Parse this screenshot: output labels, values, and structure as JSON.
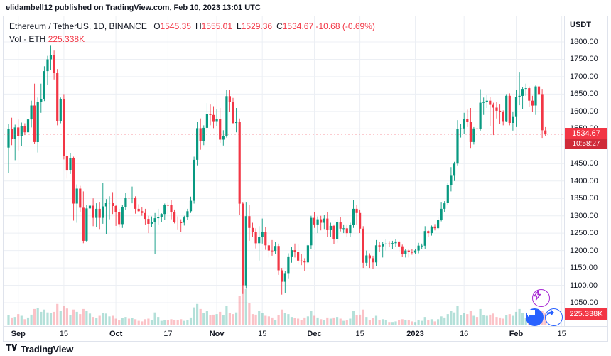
{
  "header": {
    "publish_info": "elidambell12 published on TradingView.com, Feb 10, 2023 13:01 UTC"
  },
  "legend": {
    "title": "Ethereum / TetherUS, 1D, BINANCE",
    "ohlc": [
      {
        "label": "O",
        "value": "1545.35"
      },
      {
        "label": "H",
        "value": "1555.01"
      },
      {
        "label": "L",
        "value": "1529.36"
      },
      {
        "label": "C",
        "value": "1534.67"
      }
    ],
    "change": "-10.68 (-0.69%)",
    "vol": {
      "label": "Vol · ETH",
      "value": "225.338K"
    }
  },
  "axis": {
    "currency": "USDT",
    "price_ticks": [
      "1800.00",
      "1750.00",
      "1700.00",
      "1650.00",
      "1600.00",
      "1550.00",
      "1500.00",
      "1450.00",
      "1400.00",
      "1350.00",
      "1300.00",
      "1250.00",
      "1200.00",
      "1150.00",
      "1100.00",
      "1050.00"
    ],
    "time_ticks": [
      {
        "i": 3,
        "label": "Sep",
        "bold": true
      },
      {
        "i": 17,
        "label": "15",
        "bold": false
      },
      {
        "i": 33,
        "label": "Oct",
        "bold": true
      },
      {
        "i": 49,
        "label": "17",
        "bold": false
      },
      {
        "i": 64,
        "label": "Nov",
        "bold": true
      },
      {
        "i": 78,
        "label": "15",
        "bold": false
      },
      {
        "i": 94,
        "label": "Dec",
        "bold": true
      },
      {
        "i": 108,
        "label": "15",
        "bold": false
      },
      {
        "i": 125,
        "label": "2023",
        "bold": true
      },
      {
        "i": 140,
        "label": "16",
        "bold": false
      },
      {
        "i": 156,
        "label": "Feb",
        "bold": true
      },
      {
        "i": 170,
        "label": "15",
        "bold": false
      }
    ]
  },
  "price_label": {
    "price": "1534.67",
    "countdown": "10:58:27"
  },
  "volume_label": "225.338K",
  "footer": {
    "brand": "TradingView"
  },
  "colors": {
    "up": "#089981",
    "down": "#f23645",
    "vol_up": "rgba(8,153,129,0.30)",
    "vol_down": "rgba(242,54,69,0.30)",
    "grid": "#eceff4",
    "accent_blue": "#2962ff",
    "boost_purple": "#a626d3"
  },
  "chart_data": {
    "type": "candlestick",
    "title": "Ethereum / TetherUS, 1D, BINANCE",
    "interval": "1D",
    "start_date": "2022-08-29",
    "end_date": "2023-02-10",
    "price_range": [
      1050,
      1800
    ],
    "volume_unit": "K",
    "last": {
      "o": 1545.35,
      "h": 1555.01,
      "l": 1529.36,
      "c": 1534.67,
      "vol_k": 225.338
    },
    "candles": [
      [
        1496,
        1565,
        1422,
        1550,
        180
      ],
      [
        1550,
        1582,
        1503,
        1522,
        140
      ],
      [
        1522,
        1562,
        1460,
        1554,
        150
      ],
      [
        1554,
        1577,
        1488,
        1529,
        200
      ],
      [
        1529,
        1568,
        1500,
        1557,
        170
      ],
      [
        1557,
        1566,
        1532,
        1540,
        110
      ],
      [
        1540,
        1580,
        1516,
        1577,
        140
      ],
      [
        1577,
        1631,
        1554,
        1617,
        190
      ],
      [
        1617,
        1680,
        1506,
        1512,
        290
      ],
      [
        1512,
        1640,
        1482,
        1627,
        310
      ],
      [
        1627,
        1680,
        1596,
        1635,
        240
      ],
      [
        1635,
        1730,
        1630,
        1716,
        280
      ],
      [
        1716,
        1760,
        1676,
        1750,
        230
      ],
      [
        1750,
        1789,
        1720,
        1762,
        220
      ],
      [
        1762,
        1775,
        1692,
        1710,
        240
      ],
      [
        1710,
        1722,
        1560,
        1573,
        380
      ],
      [
        1573,
        1640,
        1566,
        1635,
        260
      ],
      [
        1635,
        1650,
        1462,
        1472,
        350
      ],
      [
        1472,
        1490,
        1407,
        1432,
        300
      ],
      [
        1432,
        1480,
        1420,
        1465,
        180
      ],
      [
        1465,
        1470,
        1286,
        1335,
        280
      ],
      [
        1335,
        1390,
        1280,
        1378,
        240
      ],
      [
        1378,
        1386,
        1310,
        1323,
        200
      ],
      [
        1323,
        1370,
        1221,
        1228,
        290
      ],
      [
        1228,
        1330,
        1225,
        1321,
        260
      ],
      [
        1321,
        1346,
        1255,
        1329,
        210
      ],
      [
        1329,
        1350,
        1270,
        1294,
        150
      ],
      [
        1294,
        1336,
        1268,
        1320,
        130
      ],
      [
        1320,
        1340,
        1262,
        1294,
        170
      ],
      [
        1294,
        1395,
        1277,
        1327,
        220
      ],
      [
        1327,
        1348,
        1247,
        1337,
        210
      ],
      [
        1337,
        1356,
        1290,
        1338,
        160
      ],
      [
        1338,
        1368,
        1305,
        1328,
        170
      ],
      [
        1328,
        1332,
        1271,
        1311,
        120
      ],
      [
        1311,
        1320,
        1266,
        1276,
        100
      ],
      [
        1276,
        1330,
        1265,
        1324,
        130
      ],
      [
        1324,
        1365,
        1316,
        1352,
        150
      ],
      [
        1352,
        1366,
        1321,
        1351,
        120
      ],
      [
        1351,
        1384,
        1336,
        1352,
        130
      ],
      [
        1352,
        1356,
        1306,
        1320,
        110
      ],
      [
        1320,
        1333,
        1310,
        1313,
        80
      ],
      [
        1313,
        1324,
        1300,
        1308,
        70
      ],
      [
        1308,
        1320,
        1275,
        1291,
        110
      ],
      [
        1291,
        1300,
        1250,
        1277,
        120
      ],
      [
        1277,
        1298,
        1267,
        1282,
        90
      ],
      [
        1282,
        1308,
        1190,
        1293,
        230
      ],
      [
        1293,
        1320,
        1275,
        1297,
        150
      ],
      [
        1297,
        1307,
        1282,
        1305,
        80
      ],
      [
        1305,
        1335,
        1289,
        1331,
        90
      ],
      [
        1331,
        1340,
        1305,
        1330,
        100
      ],
      [
        1330,
        1345,
        1290,
        1311,
        110
      ],
      [
        1311,
        1318,
        1278,
        1283,
        90
      ],
      [
        1283,
        1298,
        1261,
        1281,
        100
      ],
      [
        1281,
        1290,
        1253,
        1280,
        110
      ],
      [
        1280,
        1300,
        1272,
        1295,
        80
      ],
      [
        1295,
        1320,
        1288,
        1313,
        90
      ],
      [
        1313,
        1355,
        1308,
        1343,
        140
      ],
      [
        1343,
        1470,
        1335,
        1461,
        320
      ],
      [
        1461,
        1570,
        1445,
        1552,
        380
      ],
      [
        1552,
        1580,
        1490,
        1515,
        290
      ],
      [
        1515,
        1560,
        1503,
        1553,
        220
      ],
      [
        1553,
        1624,
        1540,
        1592,
        260
      ],
      [
        1592,
        1620,
        1560,
        1590,
        180
      ],
      [
        1590,
        1615,
        1552,
        1572,
        190
      ],
      [
        1572,
        1608,
        1558,
        1579,
        200
      ],
      [
        1579,
        1610,
        1510,
        1519,
        240
      ],
      [
        1519,
        1546,
        1502,
        1530,
        180
      ],
      [
        1530,
        1662,
        1525,
        1644,
        350
      ],
      [
        1644,
        1663,
        1599,
        1628,
        220
      ],
      [
        1628,
        1639,
        1565,
        1567,
        200
      ],
      [
        1567,
        1610,
        1540,
        1571,
        230
      ],
      [
        1571,
        1580,
        1302,
        1335,
        520
      ],
      [
        1335,
        1340,
        1075,
        1100,
        780
      ],
      [
        1100,
        1340,
        1090,
        1299,
        640
      ],
      [
        1299,
        1332,
        1228,
        1265,
        400
      ],
      [
        1265,
        1280,
        1240,
        1253,
        200
      ],
      [
        1253,
        1264,
        1206,
        1221,
        190
      ],
      [
        1221,
        1270,
        1171,
        1240,
        260
      ],
      [
        1240,
        1292,
        1220,
        1253,
        220
      ],
      [
        1253,
        1268,
        1202,
        1215,
        170
      ],
      [
        1215,
        1226,
        1180,
        1200,
        160
      ],
      [
        1200,
        1230,
        1185,
        1199,
        140
      ],
      [
        1199,
        1225,
        1190,
        1213,
        100
      ],
      [
        1213,
        1220,
        1130,
        1143,
        180
      ],
      [
        1143,
        1150,
        1073,
        1110,
        280
      ],
      [
        1110,
        1140,
        1078,
        1135,
        220
      ],
      [
        1135,
        1192,
        1120,
        1183,
        200
      ],
      [
        1183,
        1210,
        1165,
        1201,
        150
      ],
      [
        1201,
        1220,
        1180,
        1197,
        130
      ],
      [
        1197,
        1218,
        1163,
        1171,
        120
      ],
      [
        1171,
        1190,
        1158,
        1170,
        100
      ],
      [
        1170,
        1178,
        1140,
        1166,
        140
      ],
      [
        1166,
        1220,
        1160,
        1215,
        160
      ],
      [
        1215,
        1300,
        1205,
        1294,
        260
      ],
      [
        1294,
        1310,
        1265,
        1275,
        170
      ],
      [
        1275,
        1298,
        1250,
        1290,
        140
      ],
      [
        1290,
        1300,
        1258,
        1280,
        110
      ],
      [
        1280,
        1302,
        1262,
        1292,
        100
      ],
      [
        1292,
        1310,
        1240,
        1259,
        140
      ],
      [
        1259,
        1280,
        1238,
        1271,
        120
      ],
      [
        1271,
        1275,
        1219,
        1233,
        140
      ],
      [
        1233,
        1290,
        1222,
        1281,
        150
      ],
      [
        1281,
        1297,
        1255,
        1263,
        120
      ],
      [
        1263,
        1275,
        1250,
        1264,
        80
      ],
      [
        1264,
        1275,
        1240,
        1250,
        90
      ],
      [
        1250,
        1280,
        1238,
        1274,
        120
      ],
      [
        1274,
        1346,
        1265,
        1320,
        260
      ],
      [
        1320,
        1330,
        1275,
        1308,
        180
      ],
      [
        1308,
        1318,
        1250,
        1263,
        190
      ],
      [
        1263,
        1270,
        1150,
        1165,
        280
      ],
      [
        1165,
        1200,
        1155,
        1186,
        150
      ],
      [
        1186,
        1192,
        1150,
        1178,
        100
      ],
      [
        1178,
        1185,
        1146,
        1166,
        130
      ],
      [
        1166,
        1230,
        1155,
        1215,
        170
      ],
      [
        1215,
        1224,
        1196,
        1212,
        100
      ],
      [
        1212,
        1225,
        1180,
        1218,
        110
      ],
      [
        1218,
        1232,
        1200,
        1220,
        100
      ],
      [
        1220,
        1227,
        1210,
        1219,
        60
      ],
      [
        1219,
        1228,
        1205,
        1221,
        60
      ],
      [
        1221,
        1232,
        1210,
        1226,
        70
      ],
      [
        1226,
        1230,
        1195,
        1212,
        90
      ],
      [
        1212,
        1217,
        1182,
        1189,
        110
      ],
      [
        1189,
        1205,
        1180,
        1200,
        90
      ],
      [
        1200,
        1205,
        1180,
        1196,
        90
      ],
      [
        1196,
        1204,
        1188,
        1194,
        70
      ],
      [
        1194,
        1205,
        1190,
        1200,
        60
      ],
      [
        1200,
        1222,
        1192,
        1214,
        90
      ],
      [
        1214,
        1220,
        1204,
        1214,
        80
      ],
      [
        1214,
        1270,
        1205,
        1256,
        150
      ],
      [
        1256,
        1260,
        1240,
        1250,
        100
      ],
      [
        1250,
        1272,
        1243,
        1269,
        110
      ],
      [
        1269,
        1276,
        1258,
        1264,
        70
      ],
      [
        1264,
        1297,
        1259,
        1288,
        110
      ],
      [
        1288,
        1340,
        1284,
        1320,
        160
      ],
      [
        1320,
        1342,
        1310,
        1336,
        140
      ],
      [
        1336,
        1394,
        1330,
        1389,
        200
      ],
      [
        1389,
        1440,
        1370,
        1417,
        260
      ],
      [
        1417,
        1455,
        1400,
        1450,
        230
      ],
      [
        1450,
        1575,
        1445,
        1550,
        340
      ],
      [
        1550,
        1563,
        1525,
        1551,
        180
      ],
      [
        1551,
        1596,
        1535,
        1578,
        220
      ],
      [
        1578,
        1605,
        1555,
        1569,
        200
      ],
      [
        1569,
        1610,
        1495,
        1512,
        260
      ],
      [
        1512,
        1555,
        1505,
        1551,
        170
      ],
      [
        1551,
        1560,
        1520,
        1549,
        150
      ],
      [
        1549,
        1664,
        1545,
        1625,
        290
      ],
      [
        1625,
        1640,
        1590,
        1628,
        180
      ],
      [
        1628,
        1648,
        1610,
        1631,
        170
      ],
      [
        1631,
        1642,
        1557,
        1619,
        190
      ],
      [
        1619,
        1625,
        1532,
        1611,
        210
      ],
      [
        1611,
        1627,
        1580,
        1602,
        150
      ],
      [
        1602,
        1620,
        1565,
        1598,
        140
      ],
      [
        1598,
        1603,
        1560,
        1572,
        120
      ],
      [
        1572,
        1650,
        1570,
        1645,
        180
      ],
      [
        1645,
        1652,
        1560,
        1567,
        200
      ],
      [
        1567,
        1600,
        1545,
        1586,
        170
      ],
      [
        1586,
        1663,
        1555,
        1642,
        240
      ],
      [
        1642,
        1712,
        1618,
        1645,
        290
      ],
      [
        1645,
        1670,
        1608,
        1665,
        220
      ],
      [
        1665,
        1680,
        1645,
        1667,
        130
      ],
      [
        1667,
        1672,
        1612,
        1631,
        140
      ],
      [
        1631,
        1645,
        1598,
        1617,
        150
      ],
      [
        1617,
        1675,
        1590,
        1672,
        190
      ],
      [
        1672,
        1695,
        1640,
        1650,
        200
      ],
      [
        1650,
        1665,
        1524,
        1546,
        260
      ],
      [
        1545.35,
        1555.01,
        1529.36,
        1534.67,
        225.338
      ]
    ]
  }
}
